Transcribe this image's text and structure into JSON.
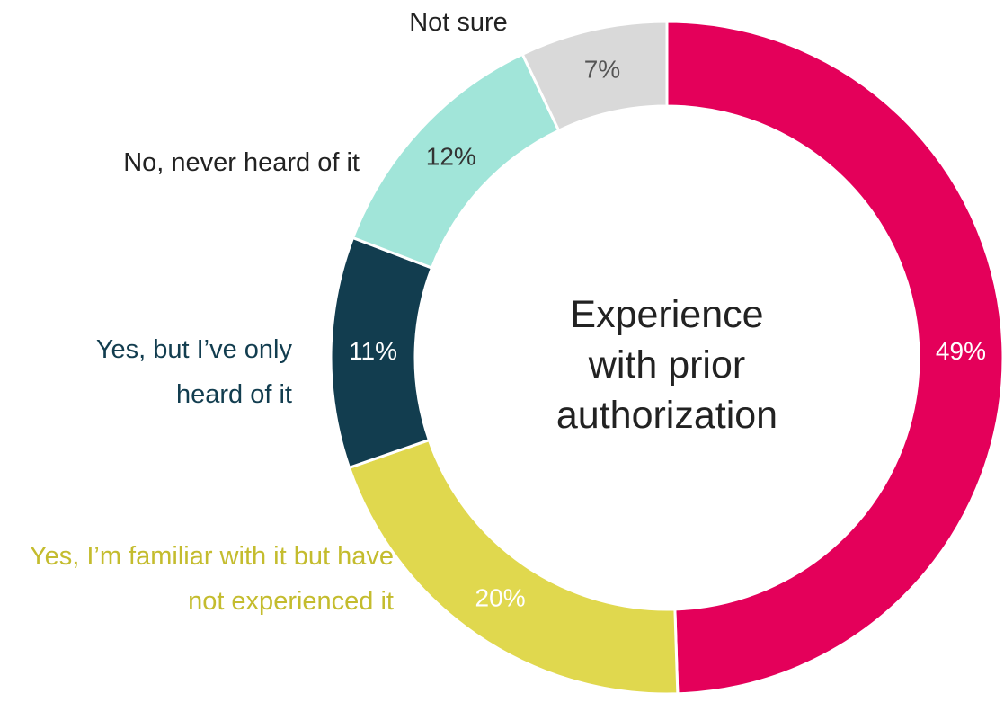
{
  "chart_data": {
    "type": "donut",
    "title": "Experience with prior authorization",
    "categories": [
      null,
      "Yes, I’m familiar with it but have not experienced it",
      "Yes, but I’ve only heard of it",
      "No, never heard of it",
      "Not sure"
    ],
    "values": [
      49,
      20,
      11,
      12,
      7
    ],
    "value_labels": [
      "49%",
      "20%",
      "11%",
      "12%",
      "7%"
    ],
    "colors": [
      "#e4005a",
      "#e0d84e",
      "#123d4f",
      "#a1e5d9",
      "#d9d9d9"
    ],
    "label_colors": [
      "#222222",
      "#c4bc2e",
      "#123d4f",
      "#222222",
      "#222222"
    ],
    "value_label_colors": [
      "#ffffff",
      "#ffffff",
      "#ffffff",
      "#333333",
      "#555555"
    ]
  }
}
